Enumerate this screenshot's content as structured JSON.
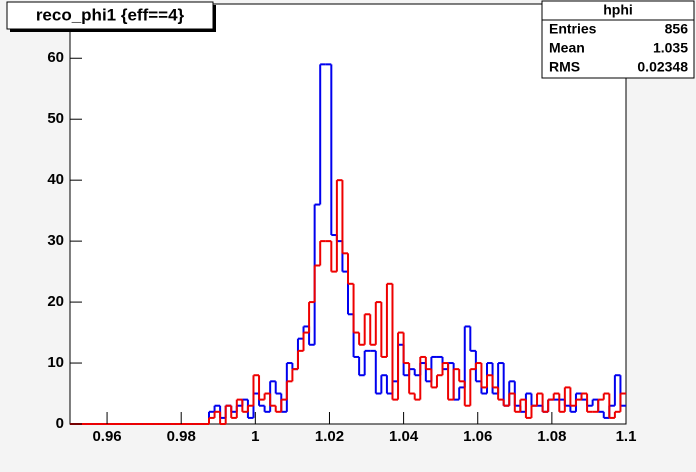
{
  "chart_data": {
    "type": "histogram",
    "title": "reco_phi1 {eff==4}",
    "bins": [
      0.95,
      0.9515,
      0.953,
      0.9545,
      0.956,
      0.9575,
      0.959,
      0.9605,
      0.962,
      0.9635,
      0.965,
      0.9665,
      0.968,
      0.9695,
      0.971,
      0.9725,
      0.974,
      0.9755,
      0.977,
      0.9785,
      0.98,
      0.9815,
      0.983,
      0.9845,
      0.986,
      0.9875,
      0.989,
      0.9905,
      0.992,
      0.9935,
      0.995,
      0.9965,
      0.998,
      0.9995,
      1.001,
      1.0025,
      1.004,
      1.0055,
      1.007,
      1.0085,
      1.01,
      1.0115,
      1.013,
      1.0145,
      1.016,
      1.0175,
      1.019,
      1.0205,
      1.022,
      1.0235,
      1.025,
      1.0265,
      1.028,
      1.0295,
      1.031,
      1.0325,
      1.034,
      1.0355,
      1.037,
      1.0385,
      1.04,
      1.0415,
      1.043,
      1.0445,
      1.046,
      1.0475,
      1.049,
      1.0505,
      1.052,
      1.0535,
      1.055,
      1.0565,
      1.058,
      1.0595,
      1.061,
      1.0625,
      1.064,
      1.0655,
      1.067,
      1.0685,
      1.07,
      1.0715,
      1.073,
      1.0745,
      1.076,
      1.0775,
      1.079,
      1.0805,
      1.082,
      1.0835,
      1.085,
      1.0865,
      1.088,
      1.0895,
      1.091,
      1.0925,
      1.094,
      1.0955,
      1.097,
      1.0985,
      1.1
    ],
    "series": [
      {
        "color": "#0000ee",
        "values": [
          0,
          0,
          0,
          0,
          0,
          0,
          0,
          0,
          0,
          0,
          0,
          0,
          0,
          0,
          0,
          0,
          0,
          0,
          0,
          0,
          0,
          0,
          0,
          0,
          0,
          2,
          3,
          1,
          3,
          2,
          3,
          4,
          1,
          5,
          3,
          2,
          7,
          5,
          2,
          10,
          9,
          14,
          16,
          13,
          36,
          59,
          59,
          31,
          30,
          25,
          18,
          11,
          8,
          12,
          12,
          5,
          8,
          5,
          7,
          13,
          8,
          9,
          8,
          10,
          7,
          11,
          11,
          9,
          10,
          4,
          6,
          16,
          12,
          7,
          5,
          10,
          5,
          10,
          3,
          7,
          3,
          2,
          5,
          3,
          3,
          2,
          4,
          4,
          4,
          3,
          2,
          5,
          4,
          3,
          4,
          2,
          1,
          3,
          8,
          3
        ]
      },
      {
        "color": "#ee0000",
        "values": [
          0,
          0,
          0,
          0,
          0,
          0,
          0,
          0,
          0,
          0,
          0,
          0,
          0,
          0,
          0,
          0,
          0,
          0,
          0,
          0,
          0,
          0,
          0,
          0,
          0,
          1,
          2,
          0,
          3,
          1,
          4,
          2,
          3,
          8,
          4,
          5,
          3,
          2,
          4,
          7,
          9,
          12,
          15,
          20,
          26,
          30,
          30,
          25,
          40,
          28,
          23,
          15,
          13,
          18,
          13,
          20,
          11,
          23,
          4,
          15,
          10,
          5,
          4,
          11,
          9,
          6,
          8,
          10,
          4,
          9,
          7,
          3,
          9,
          10,
          6,
          8,
          6,
          4,
          3,
          5,
          2,
          4,
          1,
          3,
          5,
          2,
          4,
          5,
          2,
          6,
          3,
          4,
          5,
          2,
          2,
          4,
          5,
          1,
          2,
          5
        ]
      }
    ],
    "xlim": [
      0.95,
      1.1
    ],
    "xticks": [
      0.96,
      0.98,
      1,
      1.02,
      1.04,
      1.06,
      1.08,
      1.1
    ],
    "ylim": [
      0,
      68.9
    ],
    "yticks": [
      0,
      10,
      20,
      30,
      40,
      50,
      60
    ],
    "stats": {
      "title": "hphi",
      "rows": [
        {
          "label": "Entries",
          "value": 856
        },
        {
          "label": "Mean",
          "value": 1.035
        },
        {
          "label": "RMS",
          "value": 0.02348
        }
      ]
    }
  }
}
